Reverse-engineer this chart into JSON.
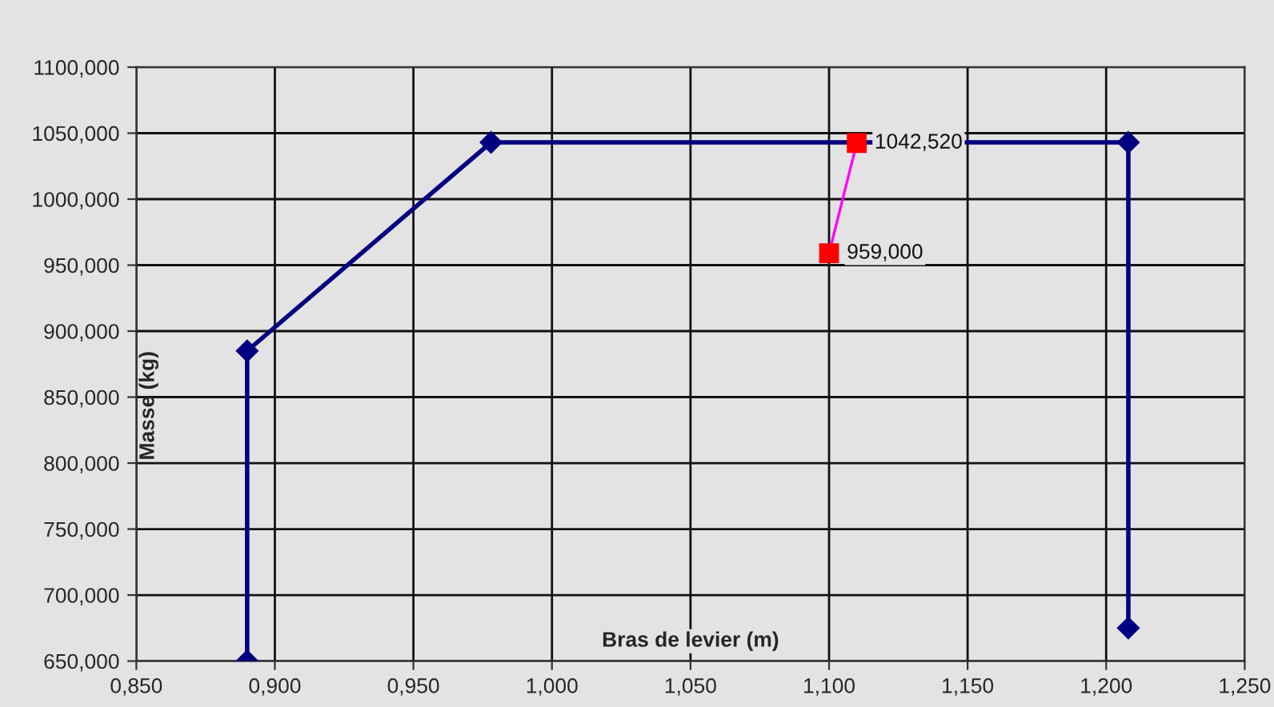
{
  "chart_data": {
    "type": "line",
    "xlabel": "Bras de levier (m)",
    "ylabel": "Masse (kg)",
    "xlim": [
      0.85,
      1.25
    ],
    "ylim": [
      650,
      1100
    ],
    "xticks": [
      {
        "value": 0.85,
        "label": "0,850"
      },
      {
        "value": 0.9,
        "label": "0,900"
      },
      {
        "value": 0.95,
        "label": "0,950"
      },
      {
        "value": 1.0,
        "label": "1,000"
      },
      {
        "value": 1.05,
        "label": "1,050"
      },
      {
        "value": 1.1,
        "label": "1,100"
      },
      {
        "value": 1.15,
        "label": "1,150"
      },
      {
        "value": 1.2,
        "label": "1,200"
      },
      {
        "value": 1.25,
        "label": "1,250"
      }
    ],
    "yticks": [
      {
        "value": 650,
        "label": "650,000"
      },
      {
        "value": 700,
        "label": "700,000"
      },
      {
        "value": 750,
        "label": "750,000"
      },
      {
        "value": 800,
        "label": "800,000"
      },
      {
        "value": 850,
        "label": "850,000"
      },
      {
        "value": 900,
        "label": "900,000"
      },
      {
        "value": 950,
        "label": "950,000"
      },
      {
        "value": 1000,
        "label": "1000,000"
      },
      {
        "value": 1050,
        "label": "1050,000"
      },
      {
        "value": 1100,
        "label": "1100,000"
      }
    ],
    "grid": true,
    "series": [
      {
        "color": "#000080",
        "marker": "diamond",
        "x": [
          0.89,
          0.89,
          0.978,
          1.208,
          1.208
        ],
        "values": [
          650,
          885,
          1043,
          1043,
          675
        ]
      },
      {
        "color": "#ff00ff",
        "marker": "square",
        "x": [
          1.1,
          1.11
        ],
        "values": [
          959,
          1042.52
        ],
        "value_labels": [
          "959,000",
          "1042,520"
        ]
      }
    ]
  }
}
